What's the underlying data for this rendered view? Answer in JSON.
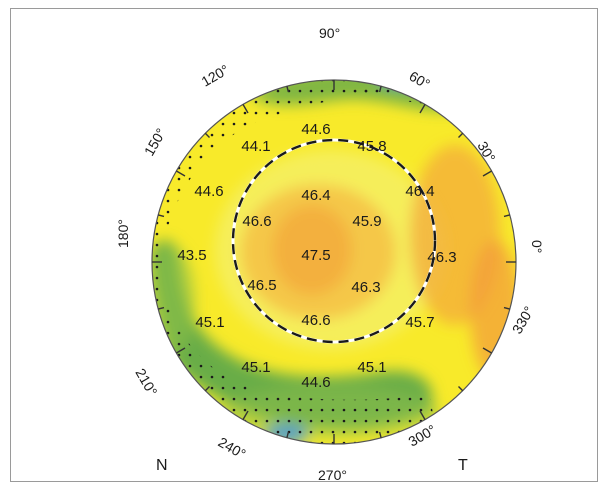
{
  "map": {
    "colors": {
      "orange": "#f4a73a",
      "yellow": "#f8ea2a",
      "lightyellow": "#f4f27a",
      "green": "#5aa64a",
      "blue": "#4a9ad8",
      "ring": "#1a1a1a"
    },
    "angle_labels": [
      "90°",
      "60°",
      "30°",
      "0°",
      "330°",
      "300°",
      "270°",
      "240°",
      "210°",
      "180°",
      "150°",
      "120°"
    ],
    "values": {
      "center": "47.5",
      "inner_90": "46.4",
      "inner_45": "45.9",
      "inner_135": "46.6",
      "inner_225": "46.5",
      "inner_315": "46.3",
      "inner_270": "46.6",
      "outer_90": "44.6",
      "outer_60": "45.8",
      "outer_120": "44.1",
      "outer_30": "46.4",
      "outer_150": "44.6",
      "outer_0": "46.3",
      "outer_180": "43.5",
      "outer_330": "45.7",
      "outer_210": "45.1",
      "outer_300": "45.1",
      "outer_240": "45.1",
      "outer_270": "44.6"
    },
    "corner_labels": {
      "nasal": "N",
      "temporal": "T"
    }
  }
}
